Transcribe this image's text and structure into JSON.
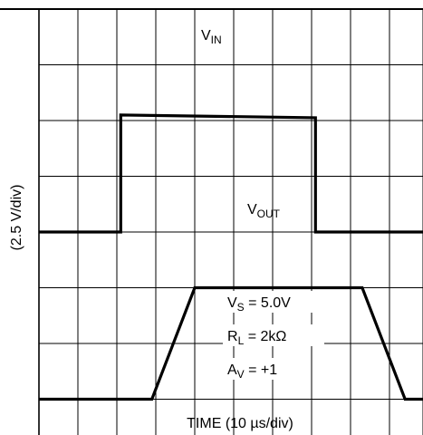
{
  "chart_data": {
    "type": "line",
    "xlabel": "TIME (10 µs/div)",
    "ylabel": "(2.5 V/div)",
    "x_unit": "div",
    "y_unit": "div",
    "xlim": [
      0,
      10
    ],
    "ylim": [
      0,
      8
    ],
    "grid": true,
    "series": [
      {
        "name": "VIN",
        "label_main": "V",
        "label_sub": "IN",
        "x": [
          0,
          2.1,
          2.1,
          7.1,
          7.1,
          10
        ],
        "y": [
          4,
          4,
          6.1,
          6.05,
          4,
          4
        ]
      },
      {
        "name": "VOUT",
        "label_main": "V",
        "label_sub": "OUT",
        "x": [
          0,
          2.9,
          4,
          8.3,
          9.4,
          10
        ],
        "y": [
          1,
          1,
          3,
          3,
          1,
          1
        ]
      }
    ],
    "annotations": [
      {
        "main": "V",
        "sub": "S",
        "rest": " = 5.0V"
      },
      {
        "main": "R",
        "sub": "L",
        "rest": " = 2kΩ"
      },
      {
        "main": "A",
        "sub": "V",
        "rest": " = +1"
      }
    ]
  }
}
